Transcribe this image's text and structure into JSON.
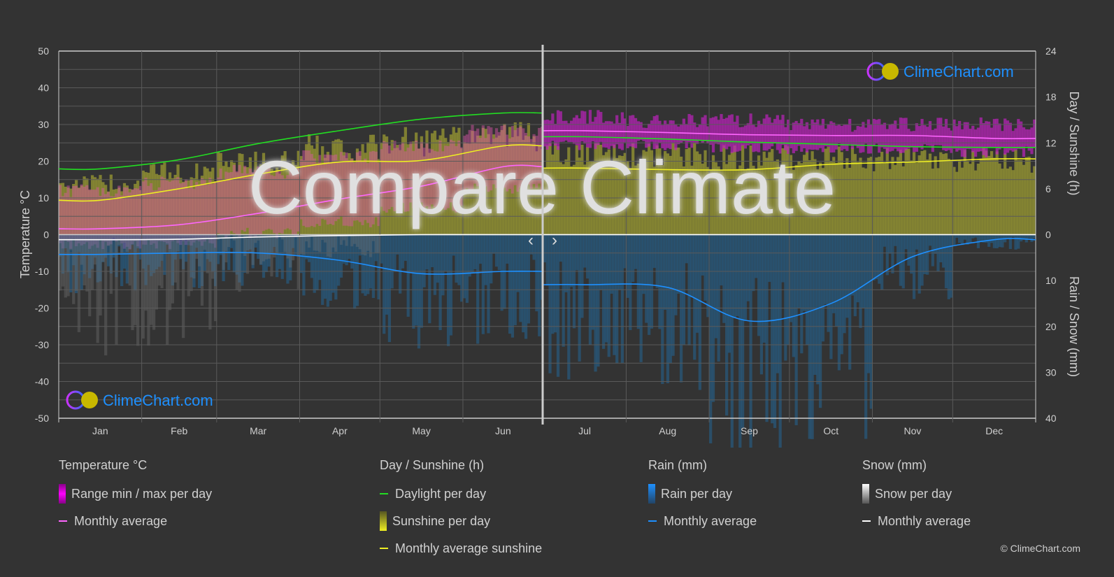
{
  "chart_data": {
    "type": "line",
    "title_overlay": "Compare Climate",
    "watermark": "ClimeChart.com",
    "x_categories": [
      "Jan",
      "Feb",
      "Mar",
      "Apr",
      "May",
      "Jun",
      "Jul",
      "Aug",
      "Sep",
      "Oct",
      "Nov",
      "Dec"
    ],
    "y_left": {
      "label": "Temperature °C",
      "range": [
        -50,
        50
      ],
      "ticks": [
        50,
        40,
        30,
        20,
        10,
        0,
        -10,
        -20,
        -30,
        -40,
        -50
      ]
    },
    "y_right_top": {
      "label": "Day / Sunshine (h)",
      "range": [
        0,
        24
      ],
      "ticks": [
        24,
        18,
        12,
        6,
        0
      ]
    },
    "y_right_bottom": {
      "label": "Rain / Snow (mm)",
      "range": [
        0,
        40
      ],
      "ticks": [
        0,
        10,
        20,
        30,
        40
      ]
    },
    "grid": true,
    "split_after_month": "Jun",
    "series": [
      {
        "name": "Temperature monthly average",
        "color": "#ff66ff",
        "values": [
          1.6,
          2.7,
          5.8,
          9.7,
          13.2,
          18.5,
          28.3,
          27.8,
          27.2,
          27.0,
          27.0,
          26.2
        ]
      },
      {
        "name": "Range min / max per day",
        "color": "#ff00ff",
        "min": [
          -4,
          -4,
          -1,
          2,
          6,
          11,
          23,
          23,
          22,
          22,
          22,
          21
        ],
        "max": [
          14,
          16,
          19,
          23,
          26,
          30,
          34,
          33,
          33,
          32,
          32,
          32
        ]
      },
      {
        "name": "Daylight per day",
        "color": "#22dd22",
        "values": [
          8.6,
          9.8,
          11.9,
          13.6,
          15.1,
          15.9,
          12.8,
          12.5,
          12.1,
          11.8,
          11.5,
          11.4
        ]
      },
      {
        "name": "Monthly average sunshine",
        "color": "#eeee22",
        "values": [
          4.5,
          6.0,
          7.9,
          9.5,
          9.7,
          11.6,
          8.7,
          8.5,
          8.5,
          9.2,
          9.5,
          9.9
        ]
      },
      {
        "name": "Sunshine per day",
        "color": "#999933",
        "values": [
          7.5,
          9.0,
          10.5,
          12.5,
          13.5,
          14.5,
          11.5,
          11.5,
          11.2,
          11.0,
          10.8,
          10.8
        ]
      },
      {
        "name": "Rain monthly average",
        "color": "#1e90ff",
        "values": [
          4.3,
          4.0,
          4.0,
          5.6,
          8.5,
          8.0,
          10.9,
          11.5,
          18.8,
          15.0,
          4.8,
          1.1
        ]
      },
      {
        "name": "Snow monthly average",
        "color": "#ffffff",
        "values": [
          1.1,
          1.0,
          0.5,
          0.2,
          0,
          0,
          0,
          0,
          0,
          0,
          0,
          0
        ]
      }
    ],
    "navigation": {
      "prev": "‹",
      "next": "›"
    }
  },
  "legend": {
    "temperature": {
      "title": "Temperature °C",
      "range": "Range min / max per day",
      "avg": "Monthly average"
    },
    "sun": {
      "title": "Day / Sunshine (h)",
      "daylight": "Daylight per day",
      "sunshine": "Sunshine per day",
      "avg": "Monthly average sunshine"
    },
    "rain": {
      "title": "Rain (mm)",
      "per_day": "Rain per day",
      "avg": "Monthly average"
    },
    "snow": {
      "title": "Snow (mm)",
      "per_day": "Snow per day",
      "avg": "Monthly average"
    }
  },
  "copyright": "© ClimeChart.com",
  "colors": {
    "background": "#333333",
    "grid": "#5a5a5a",
    "temp_range": "#ff00ff",
    "rain": "#1e90ff",
    "sunshine": "#eeee22",
    "daylight": "#22dd22"
  }
}
